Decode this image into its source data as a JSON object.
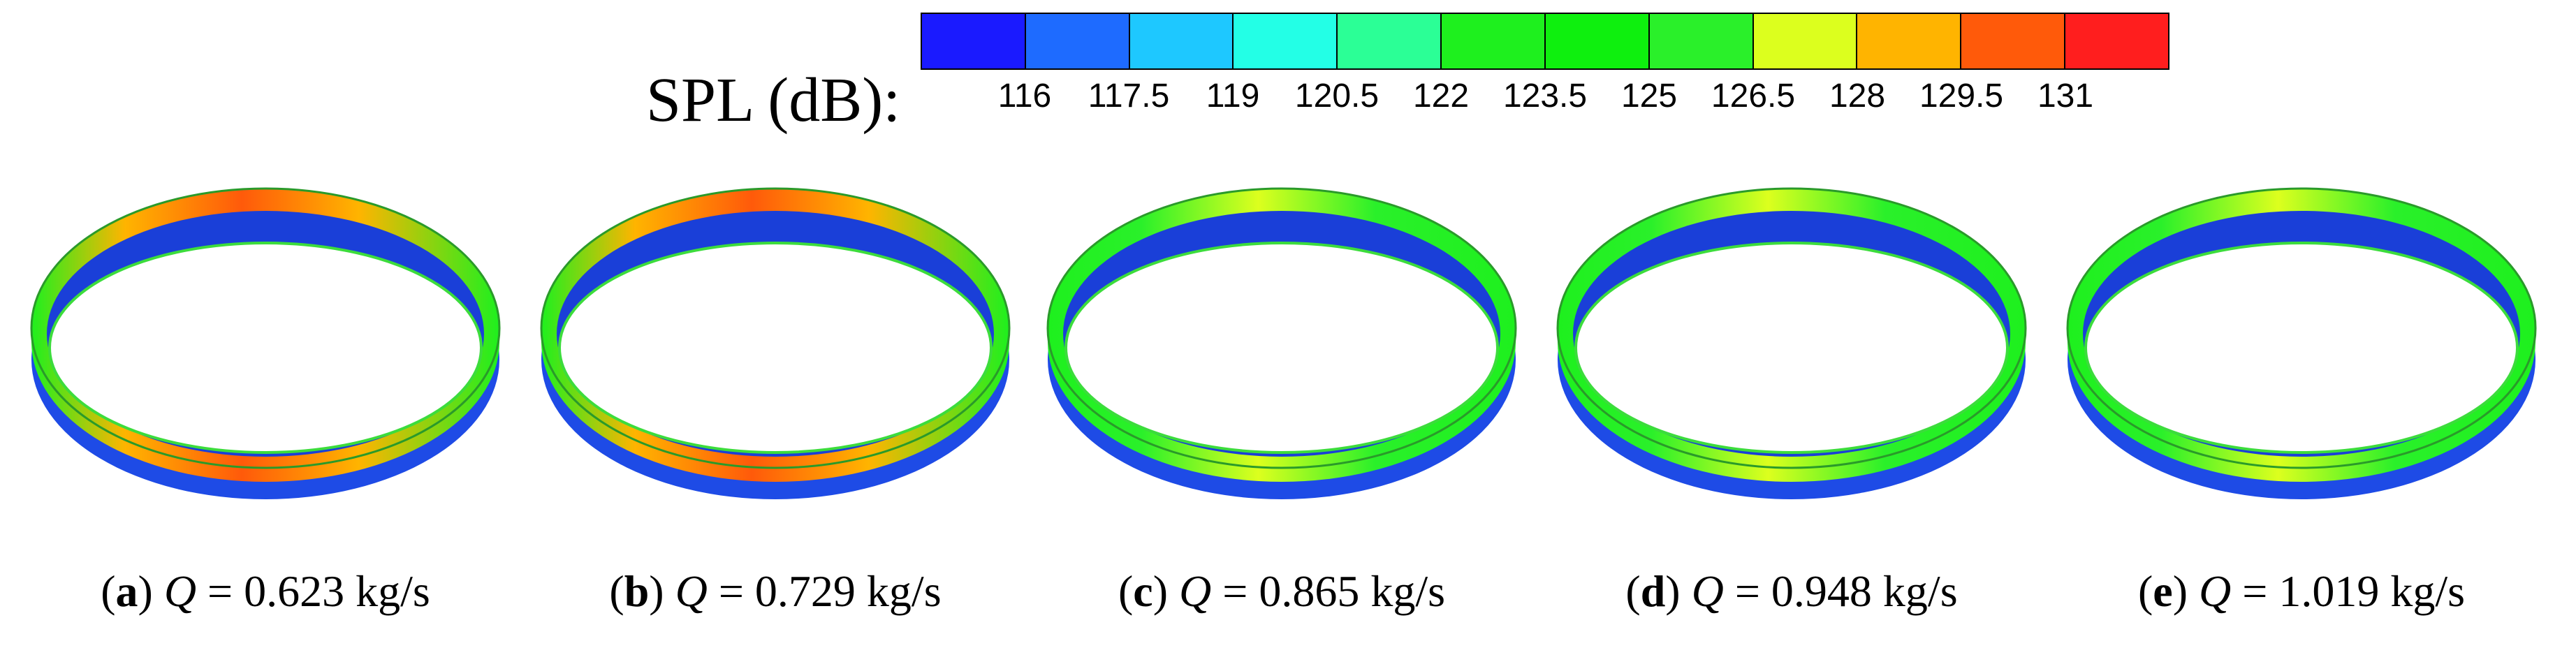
{
  "legend": {
    "label": "SPL (dB):",
    "colors": [
      "#1a1aff",
      "#1e6bff",
      "#1ec8ff",
      "#23ffe6",
      "#2bff96",
      "#1ef01e",
      "#0ef00e",
      "#2af02a",
      "#dcff1e",
      "#ffb400",
      "#ff5a0a",
      "#ff1e1e"
    ],
    "ticks": [
      "116",
      "117.5",
      "119",
      "120.5",
      "122",
      "123.5",
      "125",
      "126.5",
      "128",
      "129.5",
      "131"
    ]
  },
  "panels": [
    {
      "letter": "a",
      "var": "Q",
      "rest": " = 0.623 kg/s",
      "intensity": 1.0
    },
    {
      "letter": "b",
      "var": "Q",
      "rest": " = 0.729 kg/s",
      "intensity": 0.8
    },
    {
      "letter": "c",
      "var": "Q",
      "rest": " = 0.865 kg/s",
      "intensity": 0.45
    },
    {
      "letter": "d",
      "var": "Q",
      "rest": " = 0.948 kg/s",
      "intensity": 0.35
    },
    {
      "letter": "e",
      "var": "Q",
      "rest": " = 1.019 kg/s",
      "intensity": 0.25
    }
  ]
}
